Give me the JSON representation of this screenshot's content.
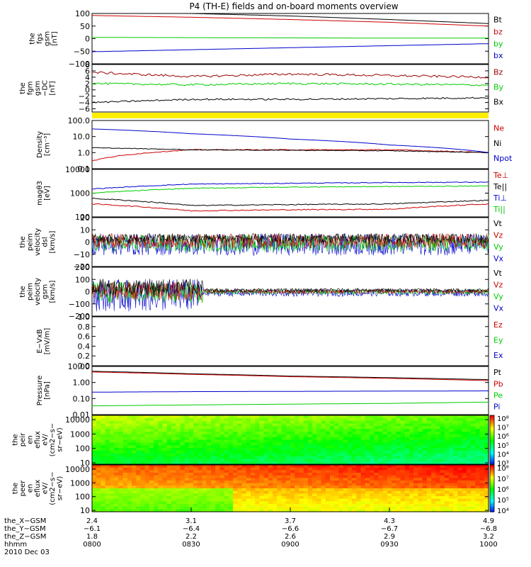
{
  "title": "P4 (TH-E) fields and on-board moments overview",
  "panels": [
    {
      "ylabel": [
        "the",
        "fgs",
        "gsm",
        "[nT]"
      ],
      "ticks": [
        "100",
        "50",
        "0",
        "−50",
        "−100"
      ],
      "tick_values": [
        100,
        50,
        0,
        -50,
        -100
      ],
      "ylim": [
        -100,
        100
      ],
      "log": false,
      "legend": [
        {
          "text": "Bt",
          "color": "#000000"
        },
        {
          "text": "bz",
          "color": "#cc0000"
        },
        {
          "text": "by",
          "color": "#00cc00"
        },
        {
          "text": "bx",
          "color": "#0000cc"
        }
      ]
    },
    {
      "ylabel": [
        "the",
        "fgm",
        "gsm",
        "−DC",
        "[nT]"
      ],
      "ticks": [
        "8",
        "6",
        "4",
        "2",
        "0",
        "−2",
        "−4",
        "−6"
      ],
      "tick_values": [
        8,
        6,
        4,
        2,
        0,
        -2,
        -4,
        -6
      ],
      "ylim": [
        -7,
        8
      ],
      "log": false,
      "legend": [
        {
          "text": "Bz",
          "color": "#990000"
        },
        {
          "text": "By",
          "color": "#00cc00"
        },
        {
          "text": "Bx",
          "color": "#000000"
        }
      ]
    },
    {
      "ylabel": [
        "Density",
        "[cm⁻³]"
      ],
      "ticks": [
        "100.0",
        "10.0",
        "1.0",
        "0.1"
      ],
      "tick_values": [
        100,
        10,
        1,
        0.1
      ],
      "ylim": [
        0.1,
        100
      ],
      "log": true,
      "legend": [
        {
          "text": "Ne",
          "color": "#cc0000"
        },
        {
          "text": "Ni",
          "color": "#000000"
        },
        {
          "text": "Npot",
          "color": "#0000cc"
        }
      ]
    },
    {
      "ylabel": [
        "magθ3",
        "[eV]"
      ],
      "ticks": [
        "10000",
        "1000",
        "100"
      ],
      "tick_values": [
        10000,
        1000,
        100
      ],
      "ylim": [
        100,
        10000
      ],
      "log": true,
      "legend": [
        {
          "text": "Te⊥",
          "color": "#cc0000"
        },
        {
          "text": "Te||",
          "color": "#000000"
        },
        {
          "text": "Ti⊥",
          "color": "#0000cc"
        },
        {
          "text": "Ti||",
          "color": "#00cc00"
        }
      ]
    },
    {
      "ylabel": [
        "the",
        "peim",
        "velocity",
        "dsl",
        "[km/s]"
      ],
      "ticks": [
        "20",
        "10",
        "0",
        "−10",
        "−20"
      ],
      "tick_values": [
        20,
        10,
        0,
        -10,
        -20
      ],
      "ylim": [
        -20,
        20
      ],
      "log": false,
      "legend": [
        {
          "text": "Vt",
          "color": "#000000"
        },
        {
          "text": "Vz",
          "color": "#cc0000"
        },
        {
          "text": "Vy",
          "color": "#00cc00"
        },
        {
          "text": "Vx",
          "color": "#0000cc"
        }
      ]
    },
    {
      "ylabel": [
        "the",
        "peim",
        "velocity",
        "gsm",
        "[km/s]"
      ],
      "ticks": [
        "200",
        "100",
        "0",
        "−100",
        "−200"
      ],
      "tick_values": [
        200,
        100,
        0,
        -100,
        -200
      ],
      "ylim": [
        -200,
        200
      ],
      "log": false,
      "legend": [
        {
          "text": "Vt",
          "color": "#000000"
        },
        {
          "text": "Vz",
          "color": "#cc0000"
        },
        {
          "text": "Vy",
          "color": "#00cc00"
        },
        {
          "text": "Vx",
          "color": "#0000cc"
        }
      ]
    },
    {
      "ylabel": [
        "E−VxB",
        "[mV/m]"
      ],
      "ticks": [
        "1.0",
        "0.8",
        "0.6",
        "0.4",
        "0.2",
        "0.0"
      ],
      "tick_values": [
        1,
        0.8,
        0.6,
        0.4,
        0.2,
        0
      ],
      "ylim": [
        0,
        1
      ],
      "log": false,
      "legend": [
        {
          "text": "Ez",
          "color": "#cc0000"
        },
        {
          "text": "Ey",
          "color": "#00cc00"
        },
        {
          "text": "Ex",
          "color": "#0000cc"
        }
      ]
    },
    {
      "ylabel": [
        "Pressure",
        "[nPa]"
      ],
      "ticks": [
        "10.00",
        "1.00",
        "0.10",
        "0.01"
      ],
      "tick_values": [
        10,
        1,
        0.1,
        0.01
      ],
      "ylim": [
        0.01,
        10
      ],
      "log": true,
      "legend": [
        {
          "text": "Pt",
          "color": "#000000"
        },
        {
          "text": "Pb",
          "color": "#cc0000"
        },
        {
          "text": "Pe",
          "color": "#00cc00"
        },
        {
          "text": "Pi",
          "color": "#0000cc"
        }
      ]
    },
    {
      "ylabel": [
        "the",
        "peir",
        "en",
        "eflux",
        "eV/",
        "(cm2−s−",
        "sr−eV)"
      ],
      "ticks": [
        "10000",
        "1000",
        "100",
        "10"
      ],
      "tick_values": [
        10000,
        1000,
        100,
        10
      ],
      "ylim": [
        8,
        20000
      ],
      "log": true,
      "cbar": [
        "10⁸",
        "10⁷",
        "10⁶",
        "10⁵",
        "10⁴",
        "10³"
      ],
      "legend": []
    },
    {
      "ylabel": [
        "the",
        "peer",
        "en",
        "eflux",
        "eV/",
        "(cm2−s−",
        "sr−eV)"
      ],
      "ticks": [
        "10000",
        "1000",
        "100",
        "10"
      ],
      "tick_values": [
        10000,
        1000,
        100,
        10
      ],
      "ylim": [
        8,
        20000
      ],
      "log": true,
      "cbar": [
        "10⁸",
        "10⁷",
        "10⁶",
        "10⁵",
        "10⁴"
      ],
      "legend": []
    }
  ],
  "x_axis": {
    "rows": [
      {
        "label": "the_X−GSM",
        "values": [
          "2.4",
          "3.1",
          "3.7",
          "4.3",
          "4.9"
        ]
      },
      {
        "label": "the_Y−GSM",
        "values": [
          "−6.1",
          "−6.4",
          "−6.6",
          "−6.7",
          "−6.8"
        ]
      },
      {
        "label": "the_Z−GSM",
        "values": [
          "1.8",
          "2.2",
          "2.6",
          "2.9",
          "3.2"
        ]
      },
      {
        "label": "hhmm",
        "values": [
          "0800",
          "0830",
          "0900",
          "0930",
          "1000"
        ]
      }
    ],
    "date": "2010 Dec 03"
  },
  "chart_data": {
    "type": "line",
    "title": "P4 (TH-E) fields and on-board moments overview",
    "x": [
      "0800",
      "0830",
      "0900",
      "0930",
      "1000"
    ],
    "series": [
      {
        "name": "Bt",
        "values": [
          107,
          100,
          90,
          76,
          60
        ]
      },
      {
        "name": "bz",
        "values": [
          92,
          85,
          76,
          65,
          50
        ]
      },
      {
        "name": "by",
        "values": [
          5,
          4,
          3,
          2,
          2
        ]
      },
      {
        "name": "bx",
        "values": [
          -52,
          -44,
          -36,
          -28,
          -20
        ]
      },
      {
        "name": "Bz",
        "values": [
          5.5,
          4.2,
          5.0,
          4.5,
          4.0
        ]
      },
      {
        "name": "By",
        "values": [
          2.0,
          1.6,
          2.0,
          1.8,
          1.5
        ]
      },
      {
        "name": "Bx",
        "values": [
          -4.0,
          -3.0,
          -3.0,
          -2.8,
          -2.5
        ]
      },
      {
        "name": "Ne",
        "values": [
          0.3,
          1.5,
          1.5,
          1.5,
          1.0
        ]
      },
      {
        "name": "Ni",
        "values": [
          2.0,
          1.5,
          1.4,
          1.3,
          1.0
        ]
      },
      {
        "name": "Npot",
        "values": [
          30,
          15,
          7,
          3,
          1.0
        ]
      },
      {
        "name": "Te⊥",
        "values": [
          350,
          180,
          200,
          210,
          350
        ]
      },
      {
        "name": "Te||",
        "values": [
          600,
          300,
          330,
          350,
          500
        ]
      },
      {
        "name": "Ti⊥",
        "values": [
          1500,
          2400,
          2600,
          2800,
          2900
        ]
      },
      {
        "name": "Ti||",
        "values": [
          1000,
          1600,
          1800,
          1900,
          2000
        ]
      },
      {
        "name": "Pt",
        "values": [
          5.0,
          3.5,
          2.5,
          2.0,
          1.5
        ]
      },
      {
        "name": "Pb",
        "values": [
          4.5,
          3.2,
          2.3,
          1.8,
          1.3
        ]
      },
      {
        "name": "Pe",
        "values": [
          0.035,
          0.04,
          0.045,
          0.05,
          0.06
        ]
      },
      {
        "name": "Pi",
        "values": [
          0.25,
          0.27,
          0.28,
          0.29,
          0.3
        ]
      }
    ]
  }
}
